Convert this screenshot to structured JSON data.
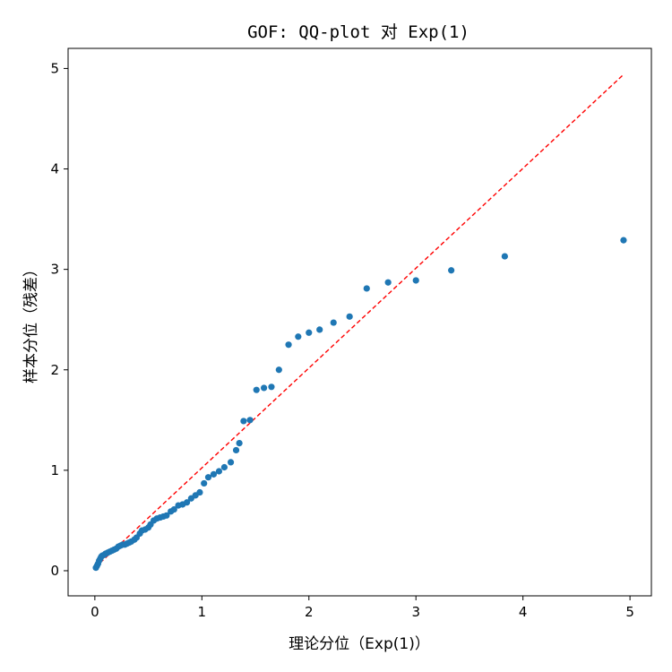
{
  "chart_data": {
    "type": "scatter",
    "title": "GOF: QQ-plot 对 Exp(1)",
    "xlabel": "理论分位（Exp(1)）",
    "ylabel": "样本分位（残差）",
    "xlim": [
      -0.25,
      5.2
    ],
    "ylim": [
      -0.25,
      5.2
    ],
    "xticks": [
      "0",
      "1",
      "2",
      "3",
      "4",
      "5"
    ],
    "yticks": [
      "0",
      "1",
      "2",
      "3",
      "4",
      "5"
    ],
    "grid": false,
    "colors": {
      "points": "#1f77b4",
      "reference_line": "#ff0000"
    },
    "reference_line": {
      "style": "dashed",
      "from": [
        0.0,
        0.03
      ],
      "to": [
        4.94,
        4.94
      ]
    },
    "points": [
      [
        0.01,
        0.03
      ],
      [
        0.02,
        0.05
      ],
      [
        0.03,
        0.07
      ],
      [
        0.04,
        0.1
      ],
      [
        0.05,
        0.12
      ],
      [
        0.06,
        0.14
      ],
      [
        0.07,
        0.15
      ],
      [
        0.09,
        0.16
      ],
      [
        0.1,
        0.17
      ],
      [
        0.12,
        0.18
      ],
      [
        0.14,
        0.19
      ],
      [
        0.16,
        0.2
      ],
      [
        0.18,
        0.21
      ],
      [
        0.2,
        0.22
      ],
      [
        0.22,
        0.24
      ],
      [
        0.24,
        0.25
      ],
      [
        0.26,
        0.26
      ],
      [
        0.28,
        0.26
      ],
      [
        0.3,
        0.27
      ],
      [
        0.32,
        0.28
      ],
      [
        0.34,
        0.29
      ],
      [
        0.37,
        0.31
      ],
      [
        0.39,
        0.33
      ],
      [
        0.42,
        0.37
      ],
      [
        0.44,
        0.4
      ],
      [
        0.47,
        0.41
      ],
      [
        0.5,
        0.43
      ],
      [
        0.52,
        0.46
      ],
      [
        0.55,
        0.5
      ],
      [
        0.58,
        0.52
      ],
      [
        0.61,
        0.53
      ],
      [
        0.64,
        0.54
      ],
      [
        0.67,
        0.55
      ],
      [
        0.71,
        0.59
      ],
      [
        0.74,
        0.61
      ],
      [
        0.78,
        0.65
      ],
      [
        0.82,
        0.66
      ],
      [
        0.86,
        0.68
      ],
      [
        0.9,
        0.72
      ],
      [
        0.94,
        0.75
      ],
      [
        0.98,
        0.78
      ],
      [
        1.02,
        0.87
      ],
      [
        1.06,
        0.93
      ],
      [
        1.11,
        0.96
      ],
      [
        1.16,
        0.99
      ],
      [
        1.21,
        1.03
      ],
      [
        1.27,
        1.08
      ],
      [
        1.32,
        1.2
      ],
      [
        1.35,
        1.27
      ],
      [
        1.39,
        1.49
      ],
      [
        1.45,
        1.5
      ],
      [
        1.51,
        1.8
      ],
      [
        1.58,
        1.82
      ],
      [
        1.65,
        1.83
      ],
      [
        1.72,
        2.0
      ],
      [
        1.81,
        2.25
      ],
      [
        1.9,
        2.33
      ],
      [
        2.0,
        2.37
      ],
      [
        2.1,
        2.4
      ],
      [
        2.23,
        2.47
      ],
      [
        2.38,
        2.53
      ],
      [
        2.54,
        2.81
      ],
      [
        2.74,
        2.87
      ],
      [
        3.0,
        2.89
      ],
      [
        3.33,
        2.99
      ],
      [
        3.83,
        3.13
      ],
      [
        4.94,
        3.29
      ]
    ]
  }
}
